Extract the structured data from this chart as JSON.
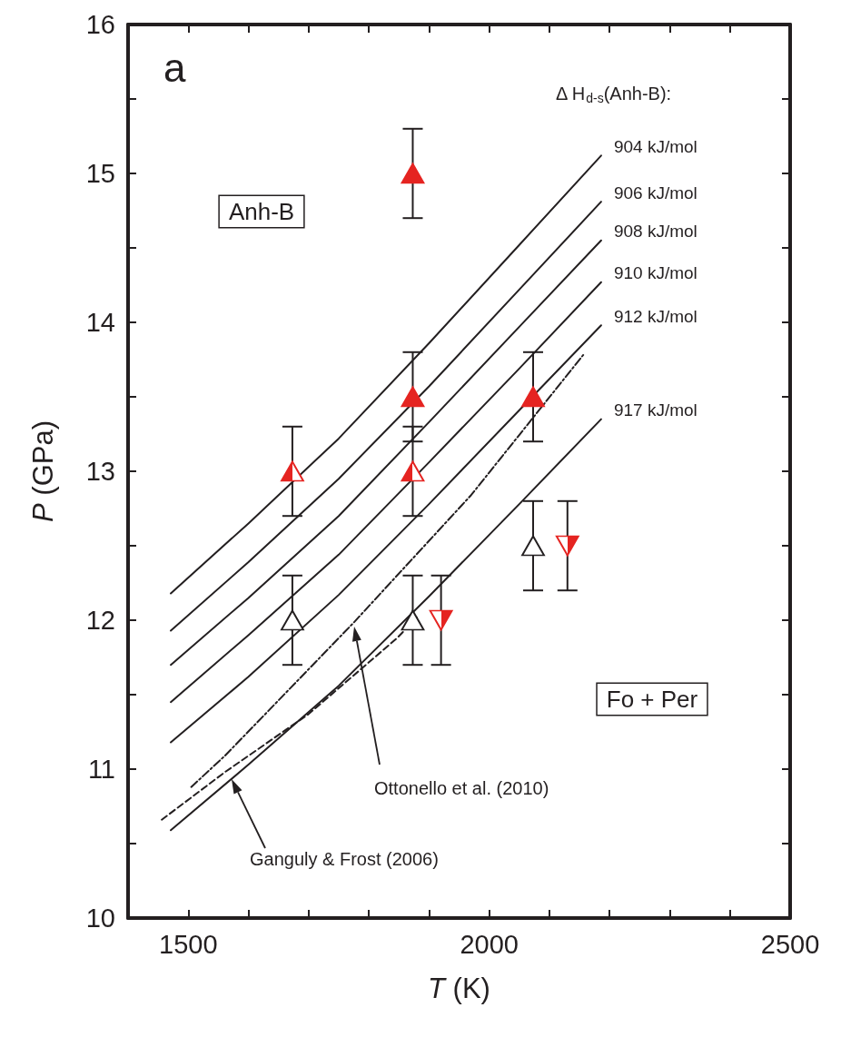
{
  "chart_data": {
    "type": "line",
    "xlabel": "T (K)",
    "ylabel": "P (GPa)",
    "legend_title": "Δ H$_{d-s}$(Anh-B):",
    "xlim": [
      1400,
      2500
    ],
    "xticks": [
      1500,
      {
        "value": 1600,
        "label": null
      },
      {
        "value": 1700,
        "label": null
      },
      {
        "value": 1800,
        "label": null
      },
      {
        "value": 1900,
        "label": null
      },
      2000,
      {
        "value": 2100,
        "label": null
      },
      {
        "value": 2200,
        "label": null
      },
      {
        "value": 2300,
        "label": null
      },
      {
        "value": 2400,
        "label": null
      },
      2500
    ],
    "ylim": [
      10,
      16
    ],
    "yticks": [
      10,
      {
        "value": 10.5,
        "label": null
      },
      11,
      {
        "value": 11.5,
        "label": null
      },
      12,
      {
        "value": 12.5,
        "label": null
      },
      13,
      {
        "value": 13.5,
        "label": null
      },
      14,
      {
        "value": 14.5,
        "label": null
      },
      15,
      {
        "value": 15.5,
        "label": null
      },
      16
    ],
    "grid": false,
    "legend": false,
    "annotations": [
      "a",
      "Anh-B",
      "Fo + Per",
      "Ottonello et al. (2010)",
      "Ganguly & Frost (2006)"
    ],
    "series": [
      {
        "name": "904 kJ/mol",
        "color": "#231f20",
        "line_style": "solid",
        "marker": "none",
        "x": [
          1471,
          1600,
          1750,
          1900,
          2050,
          2186
        ],
        "values": [
          12.18,
          12.65,
          13.22,
          13.86,
          14.52,
          15.12
        ]
      },
      {
        "name": "906 kJ/mol",
        "color": "#231f20",
        "line_style": "solid",
        "marker": "none",
        "x": [
          1471,
          1600,
          1750,
          1900,
          2050,
          2186
        ],
        "values": [
          11.93,
          12.39,
          12.95,
          13.57,
          14.22,
          14.81
        ]
      },
      {
        "name": "908 kJ/mol",
        "color": "#231f20",
        "line_style": "solid",
        "marker": "none",
        "x": [
          1471,
          1600,
          1750,
          1900,
          2050,
          2186
        ],
        "values": [
          11.7,
          12.15,
          12.7,
          13.33,
          13.97,
          14.55
        ]
      },
      {
        "name": "910 kJ/mol",
        "color": "#231f20",
        "line_style": "solid",
        "marker": "none",
        "x": [
          1471,
          1600,
          1750,
          1900,
          2050,
          2186
        ],
        "values": [
          11.45,
          11.9,
          12.44,
          13.06,
          13.69,
          14.27
        ]
      },
      {
        "name": "912 kJ/mol",
        "color": "#231f20",
        "line_style": "solid",
        "marker": "none",
        "x": [
          1471,
          1600,
          1750,
          1900,
          2050,
          2186
        ],
        "values": [
          11.18,
          11.62,
          12.17,
          12.78,
          13.41,
          13.98
        ]
      },
      {
        "name": "917 kJ/mol",
        "color": "#231f20",
        "line_style": "solid",
        "marker": "none",
        "x": [
          1471,
          1600,
          1750,
          1900,
          2050,
          2186
        ],
        "values": [
          10.59,
          11.03,
          11.56,
          12.16,
          12.78,
          13.35
        ]
      },
      {
        "color": "#231f20",
        "line_style": "dashdot",
        "marker": "none",
        "x": [
          1505,
          1561,
          1774,
          1970,
          2158
        ],
        "values": [
          10.88,
          11.09,
          11.98,
          12.84,
          13.79
        ]
      },
      {
        "color": "#231f20",
        "line_style": "dashed",
        "marker": "none",
        "x": [
          1456,
          1561,
          1700,
          1847,
          1880
        ],
        "values": [
          10.66,
          10.98,
          11.37,
          11.88,
          12.02
        ]
      },
      {
        "type": "scatter",
        "color": "#e52421",
        "marker": "triangle",
        "x": [
          1873,
          1873,
          2073
        ],
        "values": [
          15.0,
          13.5,
          13.5
        ],
        "errors": [
          0.3,
          0.3,
          0.3
        ]
      },
      {
        "type": "scatter",
        "color": "#e52421",
        "marker": "triangle-half-left",
        "x": [
          1673,
          1873
        ],
        "values": [
          13.0,
          13.0
        ],
        "errors": [
          0.3,
          0.3
        ]
      },
      {
        "type": "scatter",
        "color": "#231f20",
        "marker": "triangle-open",
        "x": [
          1673,
          1873,
          2073
        ],
        "values": [
          12.0,
          12.0,
          12.5
        ],
        "errors": [
          0.3,
          0.3,
          0.3
        ]
      },
      {
        "type": "scatter",
        "color": "#e52421",
        "marker": "triangle-down-half-right",
        "x": [
          1920,
          2130
        ],
        "values": [
          12.0,
          12.5
        ],
        "errors": [
          0.3,
          0.3
        ]
      }
    ]
  }
}
